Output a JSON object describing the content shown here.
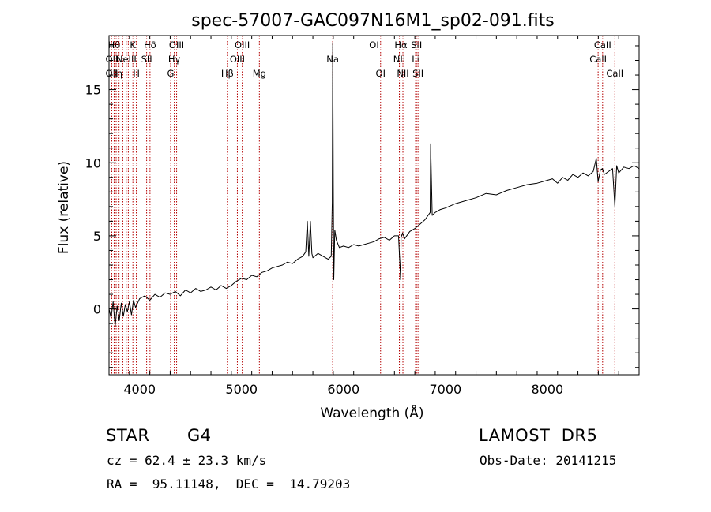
{
  "chart_data": {
    "type": "line",
    "title": "spec-57007-GAC097N16M1_sp02-091.fits",
    "xlabel": "Wavelength (Å)",
    "ylabel": "Flux (relative)",
    "xlim": [
      3700,
      8900
    ],
    "ylim": [
      -4.5,
      18.7
    ],
    "xticks": [
      4000,
      5000,
      6000,
      7000,
      8000
    ],
    "yticks": [
      0,
      5,
      10,
      15
    ],
    "grid": false,
    "series": [
      {
        "x": [
          3700,
          3720,
          3740,
          3760,
          3780,
          3800,
          3820,
          3840,
          3860,
          3880,
          3900,
          3920,
          3940,
          3960,
          3980,
          4000,
          4050,
          4100,
          4150,
          4200,
          4250,
          4300,
          4350,
          4400,
          4450,
          4500,
          4550,
          4600,
          4650,
          4700,
          4750,
          4800,
          4850,
          4900,
          4950,
          5000,
          5050,
          5100,
          5150,
          5200,
          5250,
          5300,
          5350,
          5400,
          5450,
          5500,
          5550,
          5600,
          5630,
          5645,
          5660,
          5675,
          5690,
          5700,
          5750,
          5800,
          5850,
          5880,
          5890,
          5895,
          5900,
          5905,
          5915,
          5930,
          5960,
          6000,
          6050,
          6100,
          6150,
          6200,
          6250,
          6300,
          6350,
          6400,
          6450,
          6500,
          6540,
          6560,
          6565,
          6580,
          6600,
          6650,
          6700,
          6750,
          6800,
          6850,
          6855,
          6870,
          6900,
          6950,
          7000,
          7100,
          7200,
          7300,
          7400,
          7500,
          7600,
          7700,
          7800,
          7900,
          8000,
          8050,
          8100,
          8150,
          8200,
          8250,
          8300,
          8350,
          8400,
          8450,
          8480,
          8498,
          8520,
          8540,
          8560,
          8600,
          8640,
          8662,
          8680,
          8700,
          8750,
          8800,
          8850,
          8900
        ],
        "values": [
          0.0,
          -0.6,
          0.5,
          -1.2,
          0.2,
          -0.8,
          0.4,
          -0.5,
          0.3,
          -0.2,
          0.5,
          -0.4,
          0.6,
          0.1,
          0.4,
          0.7,
          0.9,
          0.6,
          1.0,
          0.8,
          1.1,
          1.0,
          1.2,
          0.9,
          1.3,
          1.1,
          1.4,
          1.2,
          1.3,
          1.5,
          1.3,
          1.6,
          1.4,
          1.6,
          1.9,
          2.1,
          2.0,
          2.3,
          2.2,
          2.5,
          2.6,
          2.8,
          2.9,
          3.0,
          3.2,
          3.1,
          3.4,
          3.6,
          3.9,
          6.0,
          3.6,
          6.0,
          3.8,
          3.5,
          3.8,
          3.6,
          3.4,
          3.6,
          7.3,
          18.2,
          8.4,
          2.0,
          5.4,
          4.7,
          4.2,
          4.3,
          4.2,
          4.4,
          4.3,
          4.4,
          4.5,
          4.6,
          4.8,
          4.9,
          4.7,
          5.0,
          5.0,
          2.0,
          4.9,
          5.2,
          4.8,
          5.3,
          5.5,
          5.8,
          6.1,
          6.6,
          11.3,
          6.4,
          6.6,
          6.8,
          6.9,
          7.2,
          7.4,
          7.6,
          7.9,
          7.8,
          8.1,
          8.3,
          8.5,
          8.6,
          8.8,
          8.9,
          8.6,
          9.0,
          8.8,
          9.2,
          9.0,
          9.3,
          9.1,
          9.4,
          10.3,
          8.7,
          9.5,
          9.6,
          9.2,
          9.4,
          9.6,
          7.0,
          9.8,
          9.3,
          9.7,
          9.6,
          9.8,
          9.6
        ]
      }
    ],
    "lines": [
      {
        "x": 3727,
        "labels": [
          "",
          "OII",
          "OII"
        ]
      },
      {
        "x": 3750,
        "labels": [
          "Hθ",
          "",
          ""
        ]
      },
      {
        "x": 3770,
        "labels": [
          "",
          "",
          "Hη"
        ]
      },
      {
        "x": 3798,
        "labels": [
          "",
          "",
          ""
        ]
      },
      {
        "x": 3835,
        "labels": [
          "",
          "",
          ""
        ]
      },
      {
        "x": 3869,
        "labels": [
          "",
          "NeIII",
          ""
        ]
      },
      {
        "x": 3889,
        "labels": [
          "",
          "",
          ""
        ]
      },
      {
        "x": 3934,
        "labels": [
          "K",
          "",
          ""
        ]
      },
      {
        "x": 3968,
        "labels": [
          "",
          "",
          "H"
        ]
      },
      {
        "x": 4069,
        "labels": [
          "",
          "SII",
          ""
        ]
      },
      {
        "x": 4102,
        "labels": [
          "Hδ",
          "",
          ""
        ]
      },
      {
        "x": 4304,
        "labels": [
          "",
          "",
          "G"
        ]
      },
      {
        "x": 4340,
        "labels": [
          "",
          "Hγ",
          ""
        ]
      },
      {
        "x": 4363,
        "labels": [
          "OIII",
          "",
          ""
        ]
      },
      {
        "x": 4861,
        "labels": [
          "",
          "",
          "Hβ"
        ]
      },
      {
        "x": 4959,
        "labels": [
          "",
          "OIII",
          ""
        ]
      },
      {
        "x": 5007,
        "labels": [
          "OIII",
          "",
          ""
        ]
      },
      {
        "x": 5175,
        "labels": [
          "",
          "",
          "Mg"
        ]
      },
      {
        "x": 5894,
        "labels": [
          "",
          "Na",
          ""
        ]
      },
      {
        "x": 6300,
        "labels": [
          "OI",
          "",
          ""
        ]
      },
      {
        "x": 6364,
        "labels": [
          "",
          "",
          "OI"
        ]
      },
      {
        "x": 6548,
        "labels": [
          "",
          "NII",
          ""
        ]
      },
      {
        "x": 6563,
        "labels": [
          "Hα",
          "",
          ""
        ]
      },
      {
        "x": 6583,
        "labels": [
          "",
          "",
          "NII"
        ]
      },
      {
        "x": 6707,
        "labels": [
          "",
          "Li",
          ""
        ]
      },
      {
        "x": 6716,
        "labels": [
          "SII",
          "",
          ""
        ]
      },
      {
        "x": 6731,
        "labels": [
          "",
          "",
          "SII"
        ]
      },
      {
        "x": 8498,
        "labels": [
          "",
          "CaII",
          ""
        ]
      },
      {
        "x": 8542,
        "labels": [
          "CaII",
          "",
          ""
        ]
      },
      {
        "x": 8662,
        "labels": [
          "",
          "",
          "CaII"
        ]
      }
    ]
  },
  "info": {
    "class": "STAR",
    "subclass": "G4",
    "survey": "LAMOST  DR5",
    "cz": "cz = 62.4 ± 23.3 km/s",
    "obs_date": "Obs-Date: 20141215",
    "radec": "RA =  95.11148,  DEC =  14.79203"
  },
  "colors": {
    "spectrum": "#000000",
    "lines": "#b40000",
    "axis": "#000000"
  }
}
